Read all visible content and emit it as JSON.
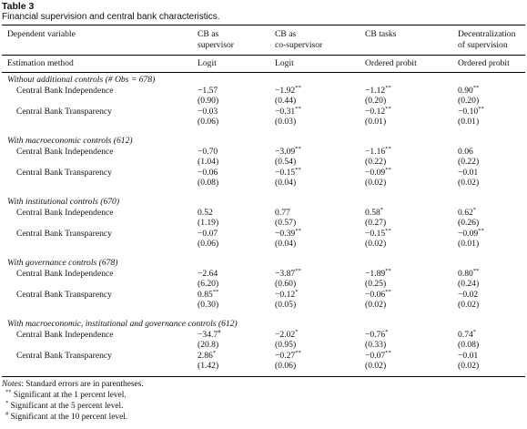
{
  "table": {
    "title": "Table 3",
    "caption": "Financial supervision and central bank characteristics.",
    "col0_header": "Dependent variable",
    "headers": [
      [
        "CB as",
        "supervisor"
      ],
      [
        "CB as",
        "co-supervisor"
      ],
      [
        "CB tasks",
        ""
      ],
      [
        "Decentralization",
        "of supervision"
      ]
    ],
    "method_label": "Estimation method",
    "methods": [
      "Logit",
      "Logit",
      "Ordered probit",
      "Ordered probit"
    ],
    "sections": [
      {
        "title": "Without additional controls (# Obs = 678)",
        "rows": [
          {
            "label": "Central Bank Independence",
            "coef": [
              [
                "−1.57",
                ""
              ],
              [
                "−1.92",
                "**"
              ],
              [
                "−1.12",
                "**"
              ],
              [
                "0.90",
                "**"
              ]
            ],
            "se": [
              "(0.90)",
              "(0.44)",
              "(0.20)",
              "(0.20)"
            ]
          },
          {
            "label": "Central Bank Transparency",
            "coef": [
              [
                "−0.03",
                ""
              ],
              [
                "−0.31",
                "**"
              ],
              [
                "−0.12",
                "**"
              ],
              [
                "−0.10",
                "**"
              ]
            ],
            "se": [
              "(0.06)",
              "(0.03)",
              "(0.01)",
              "(0.01)"
            ]
          }
        ]
      },
      {
        "title": "With macroeconomic controls (612)",
        "rows": [
          {
            "label": "Central Bank Independence",
            "coef": [
              [
                "−0.70",
                ""
              ],
              [
                "−3.09",
                "**"
              ],
              [
                "−1.16",
                "**"
              ],
              [
                "0.06",
                ""
              ]
            ],
            "se": [
              "(1.04)",
              "(0.54)",
              "(0.22)",
              "(0.22)"
            ]
          },
          {
            "label": "Central Bank Transparency",
            "coef": [
              [
                "−0.06",
                ""
              ],
              [
                "−0.15",
                "**"
              ],
              [
                "−0.09",
                "**"
              ],
              [
                "−0.01",
                ""
              ]
            ],
            "se": [
              "(0.08)",
              "(0.04)",
              "(0.02)",
              "(0.02)"
            ]
          }
        ]
      },
      {
        "title": "With institutional controls (670)",
        "rows": [
          {
            "label": "Central Bank Independence",
            "coef": [
              [
                "0.52",
                ""
              ],
              [
                "0.77",
                ""
              ],
              [
                "0.58",
                "*"
              ],
              [
                "0.62",
                "*"
              ]
            ],
            "se": [
              "(1.19)",
              "(0.57)",
              "(0.27)",
              "(0.26)"
            ]
          },
          {
            "label": "Central Bank Transparency",
            "coef": [
              [
                "−0.07",
                ""
              ],
              [
                "−0.39",
                "**"
              ],
              [
                "−0.15",
                "**"
              ],
              [
                "−0.09",
                "**"
              ]
            ],
            "se": [
              "(0.06)",
              "(0.04)",
              "(0.02)",
              "(0.01)"
            ]
          }
        ]
      },
      {
        "title": "With governance controls (678)",
        "rows": [
          {
            "label": "Central Bank Independence",
            "coef": [
              [
                "−2.64",
                ""
              ],
              [
                "−3.87",
                "**"
              ],
              [
                "−1.89",
                "**"
              ],
              [
                "0.80",
                "**"
              ]
            ],
            "se": [
              "(6.20)",
              "(0.60)",
              "(0.25)",
              "(0.24)"
            ]
          },
          {
            "label": "Central Bank Transparency",
            "coef": [
              [
                "0.85",
                "**"
              ],
              [
                "−0.12",
                "*"
              ],
              [
                "−0.06",
                "**"
              ],
              [
                "−0.02",
                ""
              ]
            ],
            "se": [
              "(0.30)",
              "(0.05)",
              "(0.02)",
              "(0.02)"
            ]
          }
        ]
      },
      {
        "title": "With macroeconomic, institutional and governance controls (612)",
        "rows": [
          {
            "label": "Central Bank Independence",
            "coef": [
              [
                "−34.7",
                "#"
              ],
              [
                "−2.02",
                "*"
              ],
              [
                "−0.76",
                "*"
              ],
              [
                "0.74",
                "*"
              ]
            ],
            "se": [
              "(20.8)",
              "(0.95)",
              "(0.33)",
              "(0.08)"
            ]
          },
          {
            "label": "Central Bank Transparency",
            "coef": [
              [
                "2.86",
                "*"
              ],
              [
                "−0.27",
                "**"
              ],
              [
                "−0.07",
                "**"
              ],
              [
                "−0.01",
                ""
              ]
            ],
            "se": [
              "(1.42)",
              "(0.06)",
              "(0.02)",
              "(0.02)"
            ]
          }
        ]
      }
    ],
    "notes": {
      "lead": "Notes",
      "text": ": Standard errors are in parentheses.",
      "fn": [
        [
          "**",
          "Significant at the 1 percent level."
        ],
        [
          "*",
          "Significant at the 5 percent level."
        ],
        [
          "#",
          "Significant at the 10 percent level."
        ]
      ]
    }
  }
}
